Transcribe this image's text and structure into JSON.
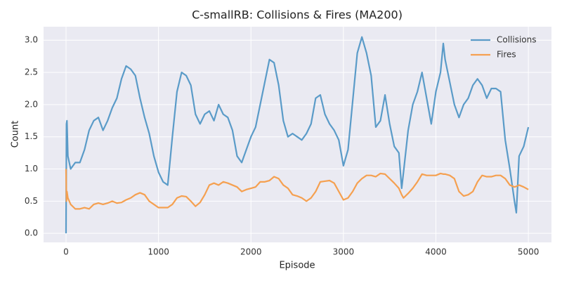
{
  "chart_data": {
    "type": "line",
    "title": "C-smallRB: Collisions & Fires (MA200)",
    "xlabel": "Episode",
    "ylabel": "Count",
    "xlim": [
      -243,
      5250
    ],
    "ylim": [
      -0.14,
      3.21
    ],
    "xticks": [
      0,
      1000,
      2000,
      3000,
      4000,
      5000
    ],
    "yticks": [
      {
        "value": 0,
        "label": "0.0"
      },
      0.5,
      {
        "value": 1,
        "label": "1.0"
      },
      1.5,
      {
        "value": 2,
        "label": "2.0"
      },
      2.5,
      {
        "value": 3,
        "label": "3.0"
      }
    ],
    "grid": true,
    "legend": "upper right",
    "x": [
      0,
      5,
      10,
      20,
      50,
      100,
      150,
      200,
      250,
      300,
      350,
      400,
      450,
      500,
      550,
      600,
      650,
      700,
      750,
      800,
      850,
      900,
      950,
      1000,
      1050,
      1100,
      1150,
      1200,
      1250,
      1300,
      1350,
      1400,
      1450,
      1500,
      1550,
      1600,
      1650,
      1700,
      1750,
      1800,
      1850,
      1900,
      1950,
      2000,
      2050,
      2100,
      2150,
      2200,
      2250,
      2300,
      2350,
      2400,
      2450,
      2500,
      2550,
      2600,
      2650,
      2700,
      2750,
      2800,
      2850,
      2900,
      2950,
      3000,
      3050,
      3100,
      3150,
      3200,
      3250,
      3300,
      3350,
      3400,
      3450,
      3500,
      3550,
      3600,
      3630,
      3650,
      3700,
      3750,
      3800,
      3850,
      3900,
      3950,
      4000,
      4050,
      4080,
      4100,
      4150,
      4200,
      4250,
      4300,
      4350,
      4400,
      4450,
      4500,
      4550,
      4600,
      4650,
      4700,
      4750,
      4800,
      4850,
      4870,
      4900,
      4950,
      5000
    ],
    "series": [
      {
        "name": "Collisions",
        "color": "#5a9bc8",
        "values": [
          0.0,
          1.7,
          1.75,
          1.2,
          1.0,
          1.1,
          1.1,
          1.3,
          1.6,
          1.75,
          1.8,
          1.6,
          1.75,
          1.95,
          2.1,
          2.4,
          2.6,
          2.55,
          2.45,
          2.1,
          1.8,
          1.55,
          1.2,
          0.95,
          0.8,
          0.75,
          1.5,
          2.2,
          2.5,
          2.45,
          2.3,
          1.85,
          1.7,
          1.85,
          1.9,
          1.75,
          2.0,
          1.85,
          1.8,
          1.6,
          1.2,
          1.1,
          1.3,
          1.5,
          1.65,
          2.0,
          2.35,
          2.7,
          2.65,
          2.3,
          1.75,
          1.5,
          1.55,
          1.5,
          1.45,
          1.55,
          1.7,
          2.1,
          2.15,
          1.85,
          1.7,
          1.6,
          1.45,
          1.05,
          1.3,
          2.05,
          2.8,
          3.05,
          2.8,
          2.45,
          1.65,
          1.75,
          2.15,
          1.7,
          1.35,
          1.25,
          0.7,
          0.95,
          1.6,
          2.0,
          2.2,
          2.5,
          2.1,
          1.7,
          2.2,
          2.5,
          2.95,
          2.7,
          2.35,
          2.0,
          1.8,
          2.0,
          2.1,
          2.3,
          2.4,
          2.3,
          2.1,
          2.25,
          2.25,
          2.2,
          1.45,
          1.0,
          0.5,
          0.32,
          1.2,
          1.35,
          1.65
        ]
      },
      {
        "name": "Fires",
        "color": "#f5a050",
        "values": [
          1.0,
          0.5,
          0.65,
          0.55,
          0.45,
          0.38,
          0.38,
          0.4,
          0.38,
          0.45,
          0.47,
          0.45,
          0.47,
          0.5,
          0.47,
          0.48,
          0.52,
          0.55,
          0.6,
          0.63,
          0.6,
          0.5,
          0.45,
          0.4,
          0.4,
          0.4,
          0.45,
          0.55,
          0.58,
          0.57,
          0.5,
          0.42,
          0.48,
          0.6,
          0.75,
          0.78,
          0.75,
          0.8,
          0.78,
          0.75,
          0.72,
          0.65,
          0.68,
          0.7,
          0.72,
          0.8,
          0.8,
          0.82,
          0.88,
          0.85,
          0.75,
          0.7,
          0.6,
          0.58,
          0.55,
          0.5,
          0.55,
          0.65,
          0.8,
          0.81,
          0.82,
          0.78,
          0.65,
          0.52,
          0.55,
          0.65,
          0.78,
          0.85,
          0.9,
          0.9,
          0.88,
          0.93,
          0.92,
          0.85,
          0.78,
          0.7,
          0.6,
          0.55,
          0.62,
          0.7,
          0.8,
          0.92,
          0.9,
          0.9,
          0.9,
          0.93,
          0.92,
          0.92,
          0.9,
          0.85,
          0.65,
          0.58,
          0.6,
          0.65,
          0.8,
          0.9,
          0.88,
          0.88,
          0.9,
          0.9,
          0.85,
          0.75,
          0.72,
          0.73,
          0.75,
          0.72,
          0.68
        ]
      }
    ]
  }
}
